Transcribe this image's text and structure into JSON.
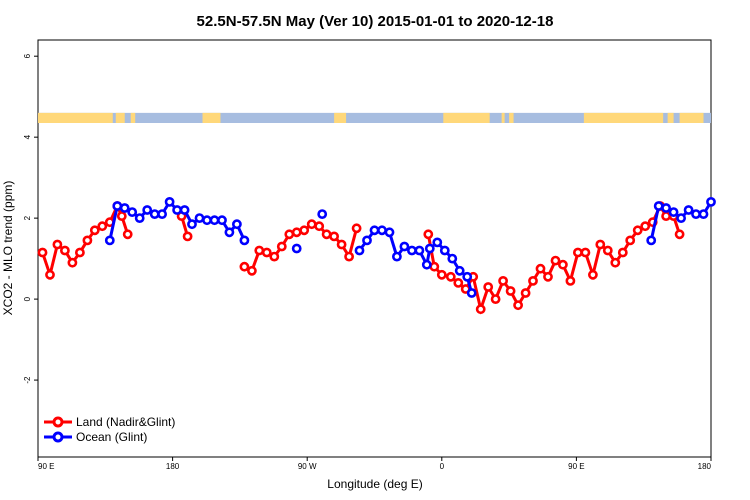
{
  "chart_data": {
    "type": "line",
    "title": "52.5N-57.5N May (Ver 10)   2015-01-01 to 2020-12-18",
    "xlabel": "Longitude (deg E)",
    "ylabel": "XCO2 - MLO trend (ppm)",
    "xlim": [
      90,
      540
    ],
    "ylim": [
      -3.9,
      6.4
    ],
    "x_ticks": [
      {
        "value": 90,
        "label": "90 E"
      },
      {
        "value": 180,
        "label": "180"
      },
      {
        "value": 270,
        "label": "90 W"
      },
      {
        "value": 360,
        "label": "0"
      },
      {
        "value": 450,
        "label": "90 E"
      },
      {
        "value": 540,
        "label": "180"
      }
    ],
    "y_ticks": [
      {
        "value": -2,
        "label": "-2"
      },
      {
        "value": 0,
        "label": "0"
      },
      {
        "value": 2,
        "label": "2"
      },
      {
        "value": 4,
        "label": "4"
      },
      {
        "value": 6,
        "label": "6"
      }
    ],
    "land_ocean_strip": {
      "y_range": [
        4.35,
        4.6
      ],
      "land_color": "#ffd87a",
      "ocean_color": "#a7bde0",
      "land_segments": [
        [
          90,
          140
        ],
        [
          142,
          148
        ],
        [
          152,
          155
        ],
        [
          200,
          212
        ],
        [
          288,
          296
        ],
        [
          361,
          392
        ],
        [
          400,
          402
        ],
        [
          405,
          408
        ],
        [
          455,
          508
        ],
        [
          511,
          515
        ],
        [
          519,
          535
        ]
      ]
    },
    "series": [
      {
        "name": "Land (Nadir&Glint)",
        "color": "#ff0000",
        "segments": [
          [
            [
              93,
              1.15
            ],
            [
              98,
              0.6
            ],
            [
              103,
              1.35
            ],
            [
              108,
              1.2
            ],
            [
              113,
              0.9
            ],
            [
              118,
              1.15
            ],
            [
              123,
              1.45
            ],
            [
              128,
              1.7
            ],
            [
              133,
              1.8
            ],
            [
              138,
              1.9
            ],
            [
              143,
              2.3
            ],
            [
              146,
              2.05
            ],
            [
              150,
              1.6
            ]
          ],
          [
            [
              186,
              2.05
            ],
            [
              190,
              1.55
            ]
          ],
          [
            [
              228,
              0.8
            ],
            [
              233,
              0.7
            ],
            [
              238,
              1.2
            ],
            [
              243,
              1.15
            ],
            [
              248,
              1.05
            ],
            [
              253,
              1.3
            ],
            [
              258,
              1.6
            ],
            [
              263,
              1.65
            ],
            [
              268,
              1.7
            ],
            [
              273,
              1.85
            ],
            [
              278,
              1.8
            ],
            [
              283,
              1.6
            ],
            [
              288,
              1.55
            ],
            [
              293,
              1.35
            ],
            [
              298,
              1.05
            ],
            [
              303,
              1.75
            ]
          ],
          [
            [
              351,
              1.6
            ],
            [
              355,
              0.8
            ],
            [
              360,
              0.6
            ],
            [
              366,
              0.55
            ],
            [
              371,
              0.4
            ],
            [
              376,
              0.25
            ],
            [
              381,
              0.55
            ],
            [
              386,
              -0.25
            ],
            [
              391,
              0.3
            ],
            [
              396,
              0.0
            ],
            [
              401,
              0.45
            ],
            [
              406,
              0.2
            ],
            [
              411,
              -0.15
            ],
            [
              416,
              0.15
            ],
            [
              421,
              0.45
            ],
            [
              426,
              0.75
            ],
            [
              431,
              0.55
            ],
            [
              436,
              0.95
            ],
            [
              441,
              0.85
            ],
            [
              446,
              0.45
            ],
            [
              451,
              1.15
            ],
            [
              456,
              1.15
            ],
            [
              461,
              0.6
            ],
            [
              466,
              1.35
            ],
            [
              471,
              1.2
            ],
            [
              476,
              0.9
            ],
            [
              481,
              1.15
            ],
            [
              486,
              1.45
            ],
            [
              491,
              1.7
            ],
            [
              496,
              1.8
            ],
            [
              501,
              1.9
            ],
            [
              506,
              2.3
            ],
            [
              510,
              2.05
            ],
            [
              515,
              2.05
            ],
            [
              519,
              1.6
            ]
          ]
        ]
      },
      {
        "name": "Ocean (Glint)",
        "color": "#0000ff",
        "segments": [
          [
            [
              138,
              1.45
            ],
            [
              143,
              2.3
            ],
            [
              148,
              2.25
            ],
            [
              153,
              2.15
            ],
            [
              158,
              2.0
            ],
            [
              163,
              2.2
            ],
            [
              168,
              2.1
            ],
            [
              173,
              2.1
            ],
            [
              178,
              2.4
            ],
            [
              183,
              2.2
            ],
            [
              188,
              2.2
            ],
            [
              193,
              1.85
            ],
            [
              198,
              2.0
            ],
            [
              203,
              1.95
            ],
            [
              208,
              1.95
            ],
            [
              213,
              1.95
            ],
            [
              218,
              1.65
            ],
            [
              223,
              1.85
            ],
            [
              228,
              1.45
            ]
          ],
          [
            [
              263,
              1.25
            ]
          ],
          [
            [
              280,
              2.1
            ]
          ],
          [
            [
              305,
              1.2
            ],
            [
              310,
              1.45
            ],
            [
              315,
              1.7
            ],
            [
              320,
              1.7
            ],
            [
              325,
              1.65
            ],
            [
              330,
              1.05
            ],
            [
              335,
              1.3
            ],
            [
              340,
              1.2
            ],
            [
              345,
              1.2
            ],
            [
              350,
              0.85
            ],
            [
              352,
              1.25
            ],
            [
              357,
              1.4
            ],
            [
              362,
              1.2
            ],
            [
              367,
              1.0
            ],
            [
              372,
              0.7
            ],
            [
              377,
              0.55
            ],
            [
              380,
              0.15
            ]
          ],
          [
            [
              500,
              1.45
            ],
            [
              505,
              2.3
            ],
            [
              510,
              2.25
            ],
            [
              515,
              2.15
            ],
            [
              520,
              2.0
            ],
            [
              525,
              2.2
            ],
            [
              530,
              2.1
            ],
            [
              535,
              2.1
            ],
            [
              540,
              2.4
            ]
          ]
        ]
      }
    ]
  }
}
